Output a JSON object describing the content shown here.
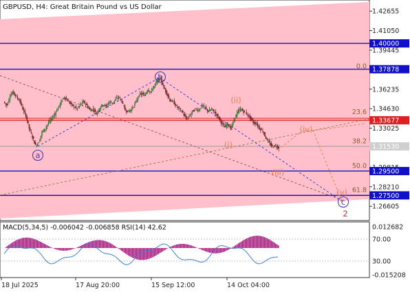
{
  "chart": {
    "symbol": "GBPUSD",
    "timeframe": "H4",
    "title_line": "GBPUSD, H4:  Great Britain Pound vs US Dollar",
    "macd_label": "MACD(5,34,5) -0.006042 -0.006858 RSI(14) 42.62"
  },
  "colors": {
    "band_fill": "#ffc0cb",
    "blue_level": "#1010c8",
    "red_level": "#e02020",
    "current_price": "#9a9a9a",
    "wave_orange": "#e8804a",
    "wave_circle": "#4b3aa8",
    "bull_candle": "#2a8a2a",
    "bear_candle": "#8a1a1a",
    "macd_hist": "#8b1a6b",
    "rsi_line": "#3a7fd5"
  },
  "chart_data": {
    "type": "candlestick",
    "ylim": [
      1.256,
      1.434
    ],
    "y_ticks": [
      "1.42655",
      "1.41050",
      "1.39445",
      "1.36235",
      "1.34630",
      "1.33025",
      "1.29815",
      "1.28210",
      "1.26605"
    ],
    "x_ticks": [
      "18 Jul 2025",
      "17 Aug 20:00",
      "15 Sep 12:00",
      "14 Oct 04:00"
    ],
    "horizontal_levels": [
      {
        "price": 1.4,
        "label": "1.40000",
        "color": "blue"
      },
      {
        "price": 1.37878,
        "label": "1.37878",
        "color": "blue"
      },
      {
        "price": 1.33677,
        "label": "1.33677",
        "color": "red"
      },
      {
        "price": 1.3153,
        "label": "1.31530",
        "color": "gray"
      },
      {
        "price": 1.295,
        "label": "1.29500",
        "color": "blue"
      },
      {
        "price": 1.275,
        "label": "1.27500",
        "color": "blue"
      }
    ],
    "fib_labels": [
      {
        "text": "0.0",
        "price": 1.3812
      },
      {
        "text": "23.6",
        "price": 1.3435
      },
      {
        "text": "38.2",
        "price": 1.3195
      },
      {
        "text": "50.0",
        "price": 1.2993
      },
      {
        "text": "61.8",
        "price": 1.2795
      }
    ],
    "wave_labels": [
      {
        "text": "a",
        "style": "circle"
      },
      {
        "text": "b",
        "style": "circle"
      },
      {
        "text": "c",
        "style": "circle"
      },
      {
        "text": "(ii)",
        "style": "orange"
      },
      {
        "text": "(i)",
        "style": "orange"
      },
      {
        "text": "(iii)",
        "style": "orange"
      },
      {
        "text": "(iv)",
        "style": "orange"
      },
      {
        "text": "(v)",
        "style": "orange"
      },
      {
        "text": "2",
        "style": "red"
      }
    ],
    "path_close": [
      1.352,
      1.349,
      1.357,
      1.36,
      1.356,
      1.353,
      1.346,
      1.34,
      1.33,
      1.323,
      1.316,
      1.319,
      1.327,
      1.33,
      1.335,
      1.338,
      1.342,
      1.347,
      1.352,
      1.356,
      1.353,
      1.35,
      1.348,
      1.346,
      1.35,
      1.352,
      1.349,
      1.345,
      1.346,
      1.342,
      1.347,
      1.35,
      1.348,
      1.352,
      1.351,
      1.354,
      1.356,
      1.352,
      1.345,
      1.344,
      1.346,
      1.35,
      1.356,
      1.359,
      1.357,
      1.362,
      1.36,
      1.365,
      1.369,
      1.371,
      1.364,
      1.359,
      1.353,
      1.352,
      1.348,
      1.346,
      1.343,
      1.338,
      1.34,
      1.344,
      1.346,
      1.345,
      1.349,
      1.347,
      1.344,
      1.346,
      1.343,
      1.34,
      1.335,
      1.331,
      1.334,
      1.33,
      1.337,
      1.343,
      1.346,
      1.344,
      1.342,
      1.339,
      1.335,
      1.334,
      1.33,
      1.328,
      1.322,
      1.318,
      1.315,
      1.316,
      1.314
    ],
    "macd_levels": [
      "0.012682",
      "-0.015208"
    ],
    "rsi_levels": [
      "70.00",
      "30.00"
    ]
  }
}
